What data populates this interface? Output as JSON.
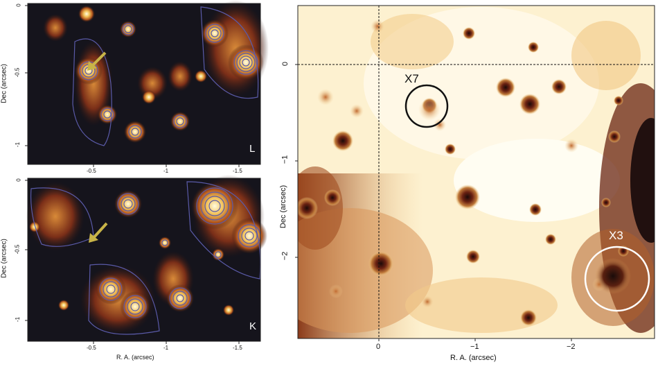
{
  "panel_L": {
    "letter": "L",
    "ylabel": "Dec (arcsec)",
    "yticks": [
      "0",
      "-0.5",
      "-1"
    ],
    "xticks": [
      "-0.5",
      "-1",
      "-1.5"
    ]
  },
  "panel_K": {
    "letter": "K",
    "ylabel": "Dec (arcsec)",
    "xlabel": "R. A. (arcsec)",
    "yticks": [
      "0",
      "-0.5",
      "-1"
    ],
    "xticks": [
      "-0.5",
      "-1",
      "-1.5"
    ]
  },
  "panel_main": {
    "ylabel": "Dec (arcsec)",
    "xlabel": "R. A. (arcsec)",
    "yticks": [
      "0",
      "−1",
      "−2"
    ],
    "xticks": [
      "0",
      "−1",
      "−2"
    ],
    "source_labels": {
      "x7": "X7",
      "x3": "X3"
    },
    "colors": {
      "x7_circle": "#111111",
      "x3_circle": "#ffffff"
    }
  },
  "colors": {
    "arrow": "#c8b448",
    "contour": "#5a5aa8",
    "background_dark": "#15141c"
  }
}
